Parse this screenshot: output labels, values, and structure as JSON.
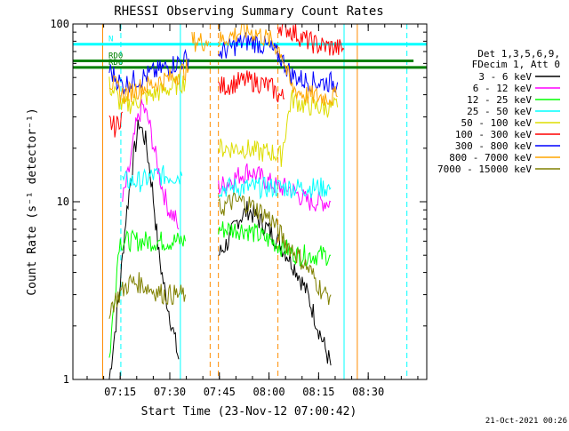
{
  "chart_data": {
    "type": "line",
    "title": "RHESSI Observing Summary Count Rates",
    "xlabel": "Start Time (23-Nov-12 07:00:42)",
    "ylabel": "Count Rate (s⁻¹ detector⁻¹)",
    "yscale": "log",
    "ylim": [
      1,
      100
    ],
    "xlim_minutes": [
      0,
      107
    ],
    "x_tick_labels": [
      {
        "minute": 14.3,
        "label": "07:15"
      },
      {
        "minute": 29.3,
        "label": "07:30"
      },
      {
        "minute": 44.3,
        "label": "07:45"
      },
      {
        "minute": 59.3,
        "label": "08:00"
      },
      {
        "minute": 74.3,
        "label": "08:15"
      },
      {
        "minute": 89.3,
        "label": "08:30"
      }
    ],
    "y_tick_labels": [
      {
        "value": 1,
        "label": "1"
      },
      {
        "value": 10,
        "label": "10"
      },
      {
        "value": 100,
        "label": "100"
      }
    ],
    "legend_header": [
      "Det 1,3,5,6,9,",
      "FDecim 1, Att 0"
    ],
    "legend_position": "right",
    "series": [
      {
        "name": "3 - 6 keV",
        "color": "#000000",
        "segments": [
          [
            [
              11,
              1.0
            ],
            [
              14,
              3
            ],
            [
              16,
              8
            ],
            [
              18,
              16
            ],
            [
              20,
              28
            ],
            [
              22,
              22
            ],
            [
              24,
              12
            ],
            [
              26,
              5
            ],
            [
              28,
              3
            ],
            [
              30,
              2
            ],
            [
              32,
              1.3
            ]
          ],
          [
            [
              44,
              5
            ],
            [
              47,
              6
            ],
            [
              50,
              8
            ],
            [
              53,
              9
            ],
            [
              56,
              8
            ],
            [
              59,
              7
            ],
            [
              62,
              6
            ],
            [
              65,
              5
            ],
            [
              68,
              4
            ],
            [
              71,
              3
            ],
            [
              74,
              2
            ],
            [
              78,
              1.2
            ]
          ]
        ]
      },
      {
        "name": "6 - 12 keV",
        "color": "#ff00ff",
        "segments": [
          [
            [
              15,
              10
            ],
            [
              17,
              15
            ],
            [
              19,
              26
            ],
            [
              21,
              35
            ],
            [
              23,
              28
            ],
            [
              25,
              18
            ],
            [
              27,
              12
            ],
            [
              29,
              9
            ],
            [
              31,
              8
            ],
            [
              32,
              7
            ]
          ],
          [
            [
              44,
              12
            ],
            [
              47,
              13
            ],
            [
              50,
              14
            ],
            [
              53,
              15
            ],
            [
              56,
              14
            ],
            [
              59,
              13
            ],
            [
              62,
              12
            ],
            [
              65,
              12
            ],
            [
              68,
              11
            ],
            [
              71,
              10
            ],
            [
              74,
              10
            ],
            [
              78,
              10
            ]
          ]
        ]
      },
      {
        "name": "12 - 25 keV",
        "color": "#00ff00",
        "segments": [
          [
            [
              11,
              1.3
            ],
            [
              14,
              6
            ],
            [
              16,
              6
            ],
            [
              20,
              6
            ],
            [
              24,
              6
            ],
            [
              28,
              6
            ],
            [
              32,
              6
            ],
            [
              34,
              6
            ]
          ],
          [
            [
              44,
              7
            ],
            [
              48,
              7
            ],
            [
              52,
              7
            ],
            [
              56,
              6.5
            ],
            [
              60,
              6
            ],
            [
              64,
              5.5
            ],
            [
              68,
              5
            ],
            [
              72,
              5
            ],
            [
              76,
              5
            ],
            [
              78,
              5
            ]
          ]
        ]
      },
      {
        "name": "25 - 50 keV",
        "color": "#00ffff",
        "segments": [
          [
            [
              15,
              13
            ],
            [
              18,
              13
            ],
            [
              21,
              13
            ],
            [
              24,
              14
            ],
            [
              27,
              14
            ],
            [
              30,
              14
            ],
            [
              33,
              14
            ]
          ],
          [
            [
              44,
              12
            ],
            [
              48,
              12
            ],
            [
              52,
              12
            ],
            [
              56,
              12
            ],
            [
              60,
              12
            ],
            [
              64,
              12
            ],
            [
              68,
              12
            ],
            [
              72,
              12
            ],
            [
              76,
              12
            ],
            [
              78,
              12
            ]
          ]
        ]
      },
      {
        "name": "50 - 100 keV",
        "color": "#dddd00",
        "segments": [
          [
            [
              11,
              45
            ],
            [
              13,
              40
            ],
            [
              15,
              34
            ],
            [
              18,
              36
            ],
            [
              21,
              38
            ],
            [
              24,
              40
            ],
            [
              27,
              42
            ],
            [
              30,
              44
            ],
            [
              32,
              46
            ],
            [
              34,
              48
            ]
          ],
          [
            [
              44,
              20
            ],
            [
              48,
              20
            ],
            [
              52,
              20
            ],
            [
              56,
              19
            ],
            [
              60,
              19
            ],
            [
              63,
              18
            ],
            [
              66,
              38
            ],
            [
              70,
              35
            ],
            [
              74,
              34
            ],
            [
              77,
              34
            ],
            [
              80,
              34
            ]
          ]
        ]
      },
      {
        "name": "100 - 300 keV",
        "color": "#ff0000",
        "segments": [
          [
            [
              11,
              28
            ],
            [
              13,
              26
            ],
            [
              15,
              32
            ]
          ],
          [
            [
              44,
              44
            ],
            [
              48,
              46
            ],
            [
              52,
              48
            ],
            [
              56,
              47
            ],
            [
              60,
              44
            ],
            [
              62,
              40
            ],
            [
              64,
              38
            ]
          ],
          [
            [
              62,
              100
            ],
            [
              66,
              92
            ],
            [
              70,
              82
            ],
            [
              74,
              76
            ],
            [
              78,
              74
            ],
            [
              80,
              73
            ],
            [
              82,
              72
            ]
          ]
        ]
      },
      {
        "name": "300 - 800 keV",
        "color": "#0000ff",
        "segments": [
          [
            [
              11,
              55
            ],
            [
              13,
              50
            ],
            [
              15,
              45
            ],
            [
              18,
              48
            ],
            [
              21,
              50
            ],
            [
              24,
              53
            ],
            [
              27,
              56
            ],
            [
              30,
              59
            ],
            [
              33,
              62
            ],
            [
              35,
              64
            ]
          ],
          [
            [
              44,
              68
            ],
            [
              48,
              74
            ],
            [
              52,
              80
            ],
            [
              56,
              78
            ],
            [
              60,
              72
            ],
            [
              63,
              64
            ],
            [
              66,
              52
            ],
            [
              70,
              48
            ],
            [
              74,
              47
            ],
            [
              78,
              47
            ],
            [
              80,
              47
            ]
          ]
        ]
      },
      {
        "name": "800 - 7000 keV",
        "color": "#ffa500",
        "segments": [
          [
            [
              11,
              48
            ],
            [
              13,
              44
            ],
            [
              15,
              40
            ],
            [
              18,
              42
            ],
            [
              21,
              44
            ],
            [
              24,
              46
            ],
            [
              27,
              48
            ],
            [
              30,
              50
            ],
            [
              33,
              54
            ],
            [
              35,
              56
            ]
          ],
          [
            [
              36,
              80
            ],
            [
              37,
              80
            ],
            [
              38,
              80
            ],
            [
              39,
              80
            ],
            [
              40,
              80
            ],
            [
              41,
              80
            ]
          ],
          [
            [
              44,
              80
            ],
            [
              48,
              86
            ],
            [
              52,
              92
            ],
            [
              56,
              88
            ],
            [
              60,
              80
            ],
            [
              63,
              70
            ],
            [
              66,
              44
            ],
            [
              70,
              40
            ],
            [
              74,
              39
            ],
            [
              78,
              39
            ],
            [
              80,
              39
            ]
          ]
        ]
      },
      {
        "name": "7000 - 15000 keV",
        "color": "#808000",
        "segments": [
          [
            [
              11,
              2.5
            ],
            [
              14,
              3
            ],
            [
              17,
              3.5
            ],
            [
              20,
              3.5
            ],
            [
              24,
              3.2
            ],
            [
              28,
              3
            ],
            [
              32,
              3
            ],
            [
              34,
              3
            ]
          ],
          [
            [
              44,
              9
            ],
            [
              48,
              10
            ],
            [
              52,
              10
            ],
            [
              56,
              9
            ],
            [
              60,
              8
            ],
            [
              64,
              6
            ],
            [
              68,
              5
            ],
            [
              72,
              4
            ],
            [
              76,
              3
            ],
            [
              78,
              3
            ]
          ]
        ]
      }
    ],
    "status_bars": [
      {
        "name": "RD0",
        "label": "RD0",
        "color": "#008000",
        "value": 62,
        "x_minutes": [
          0,
          103
        ]
      },
      {
        "name": "RD6",
        "label": "RD6",
        "color": "#008000",
        "value": 57,
        "x_minutes": [
          0,
          107
        ]
      },
      {
        "name": "N",
        "label": "N",
        "color": "#00ffff",
        "value": 77,
        "x_minutes": [
          0,
          107
        ]
      }
    ],
    "vertical_markers": [
      {
        "minute": 9,
        "color": "#ff8c00",
        "style": "solid"
      },
      {
        "minute": 14.5,
        "color": "#00ffff",
        "style": "dashed"
      },
      {
        "minute": 32.5,
        "color": "#00ffff",
        "style": "solid"
      },
      {
        "minute": 44,
        "color": "#ff8c00",
        "style": "dashed"
      },
      {
        "minute": 41.5,
        "color": "#ff8c00",
        "style": "dashed"
      },
      {
        "minute": 62,
        "color": "#ff8c00",
        "style": "dashed"
      },
      {
        "minute": 82,
        "color": "#00ffff",
        "style": "solid"
      },
      {
        "minute": 86,
        "color": "#ff8c00",
        "style": "solid"
      },
      {
        "minute": 101,
        "color": "#00ffff",
        "style": "dashed"
      }
    ]
  },
  "timestamp": "21-Oct-2021 00:26"
}
